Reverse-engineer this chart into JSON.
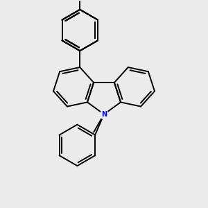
{
  "bg_color": "#ebebeb",
  "bond_color": "#000000",
  "nitrogen_color": "#0000ff",
  "linewidth": 1.4,
  "figsize": [
    3.0,
    3.0
  ],
  "dpi": 100,
  "xlim": [
    -2.5,
    2.5
  ],
  "ylim": [
    -4.5,
    5.5
  ]
}
